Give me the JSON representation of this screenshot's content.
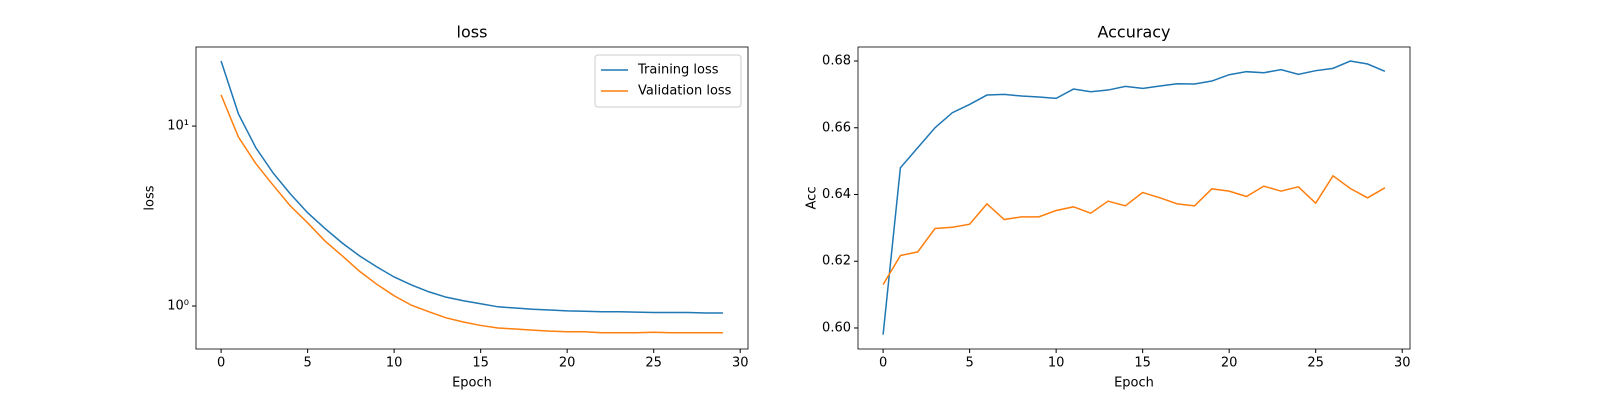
{
  "chart_data": [
    {
      "type": "line",
      "title": "loss",
      "xlabel": "Epoch",
      "ylabel": "loss",
      "log_y": true,
      "legend": "upper right",
      "x": [
        0,
        1,
        2,
        3,
        4,
        5,
        6,
        7,
        8,
        9,
        10,
        11,
        12,
        13,
        14,
        15,
        16,
        17,
        18,
        19,
        20,
        21,
        22,
        23,
        24,
        25,
        26,
        27,
        28,
        29
      ],
      "xlim": [
        -1.45,
        30.45
      ],
      "xticks": [
        0,
        5,
        10,
        15,
        20,
        25,
        30
      ],
      "ylim": [
        0.577,
        27.5
      ],
      "yticks": [
        {
          "value": 1,
          "label": "10⁰"
        },
        {
          "value": 10,
          "label": "10¹"
        }
      ],
      "series": [
        {
          "name": "Training loss",
          "color": "#1f77b4",
          "values": [
            23,
            11.7,
            7.6,
            5.5,
            4.2,
            3.3,
            2.7,
            2.24,
            1.9,
            1.65,
            1.45,
            1.31,
            1.2,
            1.12,
            1.07,
            1.03,
            0.99,
            0.975,
            0.96,
            0.95,
            0.94,
            0.935,
            0.93,
            0.93,
            0.925,
            0.92,
            0.92,
            0.92,
            0.915,
            0.915
          ]
        },
        {
          "name": "Validation loss",
          "color": "#ff7f0e",
          "values": [
            14.9,
            8.7,
            6.2,
            4.7,
            3.6,
            2.9,
            2.3,
            1.9,
            1.56,
            1.32,
            1.14,
            1.01,
            0.93,
            0.86,
            0.815,
            0.78,
            0.755,
            0.745,
            0.735,
            0.725,
            0.72,
            0.72,
            0.71,
            0.71,
            0.71,
            0.715,
            0.71,
            0.71,
            0.71,
            0.71
          ]
        }
      ]
    },
    {
      "type": "line",
      "title": "Accuracy",
      "xlabel": "Epoch",
      "ylabel": "Acc",
      "log_y": false,
      "x": [
        0,
        1,
        2,
        3,
        4,
        5,
        6,
        7,
        8,
        9,
        10,
        11,
        12,
        13,
        14,
        15,
        16,
        17,
        18,
        19,
        20,
        21,
        22,
        23,
        24,
        25,
        26,
        27,
        28,
        29
      ],
      "xlim": [
        -1.45,
        30.45
      ],
      "xticks": [
        0,
        5,
        10,
        15,
        20,
        25,
        30
      ],
      "ylim": [
        0.5937,
        0.6842
      ],
      "yticks": [
        {
          "value": 0.6,
          "label": "0.60"
        },
        0.62,
        0.64,
        0.66,
        0.68
      ],
      "series": [
        {
          "color": "#1f77b4",
          "values": [
            0.598,
            0.648,
            0.654,
            0.66,
            0.6645,
            0.667,
            0.6698,
            0.67,
            0.6695,
            0.6692,
            0.6688,
            0.6716,
            0.6708,
            0.6713,
            0.6724,
            0.6718,
            0.6725,
            0.6732,
            0.6731,
            0.674,
            0.6759,
            0.6768,
            0.6765,
            0.6774,
            0.676,
            0.6771,
            0.6778,
            0.68,
            0.6791,
            0.6769
          ]
        },
        {
          "color": "#ff7f0e",
          "values": [
            0.613,
            0.6217,
            0.6228,
            0.6298,
            0.6302,
            0.6311,
            0.6372,
            0.6325,
            0.6333,
            0.6333,
            0.6352,
            0.6363,
            0.6344,
            0.638,
            0.6366,
            0.6406,
            0.639,
            0.6372,
            0.6366,
            0.6417,
            0.641,
            0.6394,
            0.6425,
            0.641,
            0.6423,
            0.6374,
            0.6456,
            0.6418,
            0.639,
            0.642
          ]
        }
      ]
    }
  ]
}
